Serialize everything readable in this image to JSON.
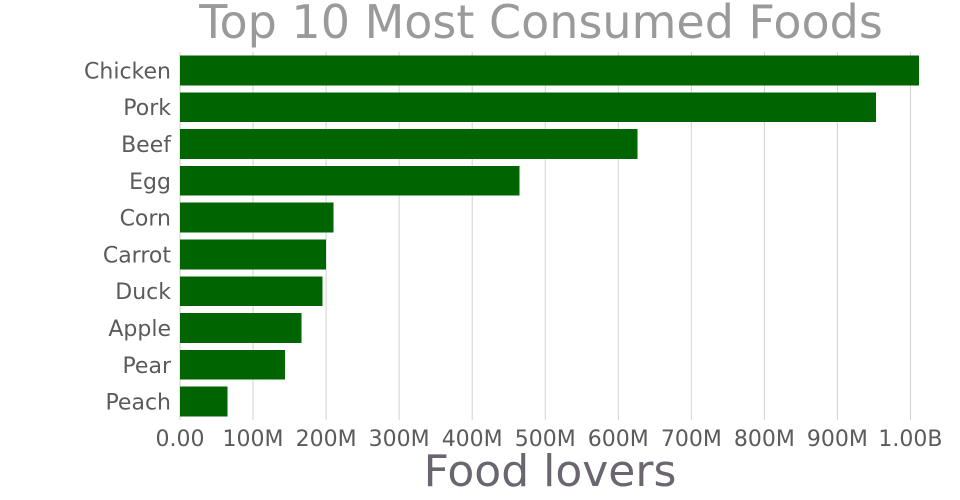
{
  "chart_data": {
    "type": "bar",
    "orientation": "horizontal",
    "title": "Top 10 Most Consumed Foods",
    "xlabel": "Food lovers",
    "ylabel": "",
    "categories": [
      "Chicken",
      "Pork",
      "Beef",
      "Egg",
      "Corn",
      "Carrot",
      "Duck",
      "Apple",
      "Pear",
      "Peach"
    ],
    "values": [
      1012000000,
      953000000,
      626000000,
      465000000,
      210000000,
      200000000,
      195000000,
      166000000,
      144000000,
      65000000
    ],
    "xlim": [
      0,
      1050000000
    ],
    "xticks": [
      0,
      100000000,
      200000000,
      300000000,
      400000000,
      500000000,
      600000000,
      700000000,
      800000000,
      900000000,
      1000000000
    ],
    "xtick_labels": [
      "0.00",
      "100M",
      "200M",
      "300M",
      "400M",
      "500M",
      "600M",
      "700M",
      "800M",
      "900M",
      "1.00B"
    ],
    "grid": "vertical",
    "legend": "none",
    "bar_color": "#006400"
  }
}
